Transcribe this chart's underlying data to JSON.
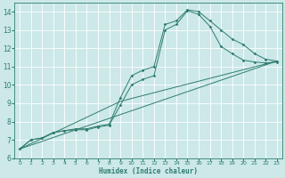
{
  "title": "",
  "xlabel": "Humidex (Indice chaleur)",
  "ylabel": "",
  "xlim": [
    -0.5,
    23.5
  ],
  "ylim": [
    6,
    14.5
  ],
  "xticks": [
    0,
    1,
    2,
    3,
    4,
    5,
    6,
    7,
    8,
    9,
    10,
    11,
    12,
    13,
    14,
    15,
    16,
    17,
    18,
    19,
    20,
    21,
    22,
    23
  ],
  "yticks": [
    6,
    7,
    8,
    9,
    10,
    11,
    12,
    13,
    14
  ],
  "bg_color": "#cce8e8",
  "grid_color": "#ffffff",
  "line_color": "#2e7d6e",
  "line1_x": [
    0,
    1,
    2,
    3,
    4,
    5,
    6,
    7,
    8,
    9,
    10,
    11,
    12,
    13,
    14,
    15,
    16,
    17,
    18,
    19,
    20,
    21,
    22,
    23
  ],
  "line1_y": [
    6.5,
    7.0,
    7.1,
    7.4,
    7.5,
    7.6,
    7.6,
    7.75,
    7.85,
    9.3,
    10.5,
    10.8,
    11.0,
    13.3,
    13.5,
    14.1,
    14.0,
    13.5,
    13.0,
    12.5,
    12.2,
    11.7,
    11.4,
    11.3
  ],
  "line2_x": [
    0,
    1,
    2,
    3,
    4,
    5,
    6,
    7,
    8,
    9,
    10,
    11,
    12,
    13,
    14,
    15,
    16,
    17,
    18,
    19,
    20,
    21,
    22,
    23
  ],
  "line2_y": [
    6.5,
    7.0,
    7.1,
    7.4,
    7.5,
    7.55,
    7.55,
    7.7,
    7.8,
    8.9,
    10.0,
    10.3,
    10.5,
    13.0,
    13.3,
    14.05,
    13.85,
    13.2,
    12.1,
    11.7,
    11.35,
    11.25,
    11.2,
    11.25
  ],
  "line3_x": [
    0,
    23
  ],
  "line3_y": [
    6.5,
    11.3
  ],
  "line4_x": [
    0,
    9,
    23
  ],
  "line4_y": [
    6.5,
    9.1,
    11.3
  ]
}
